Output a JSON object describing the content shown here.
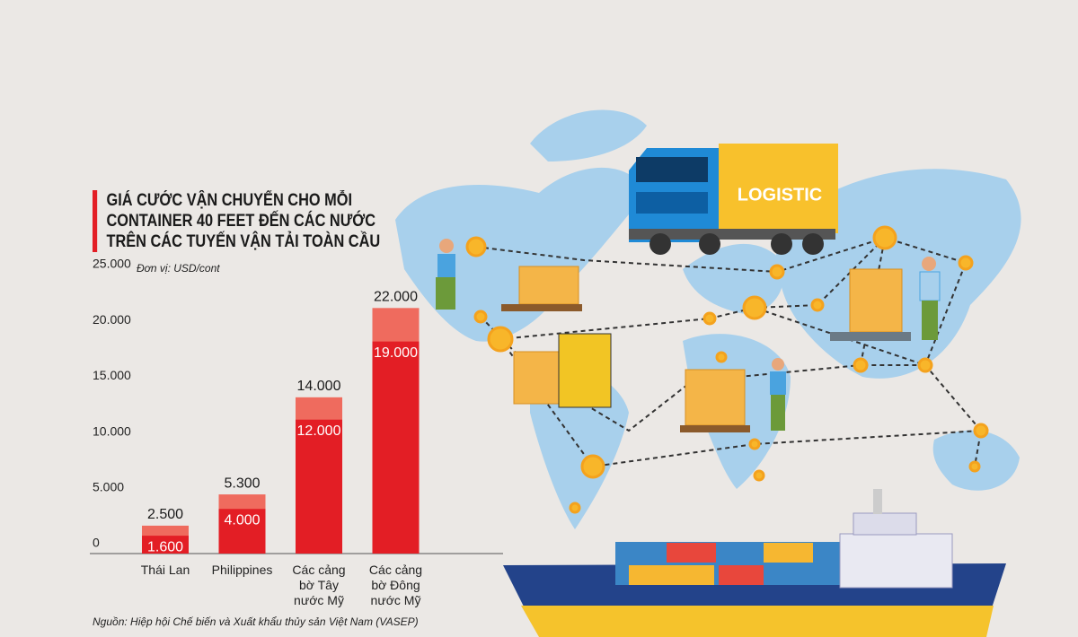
{
  "chart_data": {
    "type": "bar",
    "title": "GIÁ CƯỚC VẬN CHUYỂN CHO MỖI\nCONTAINER 40 FEET ĐẾN CÁC NƯỚC\nTRÊN CÁC TUYẾN VẬN TẢI TOÀN CẦU",
    "unit_note": "Đơn vị: USD/cont",
    "source": "Nguồn: Hiệp hội Chế biến và Xuất khẩu thủy sản Việt Nam (VASEP)",
    "truck_label": "LOGISTIC",
    "categories": [
      "Thái Lan",
      "Philippines",
      "Các cảng\nbờ Tây\nnước Mỹ",
      "Các cảng\nbờ Đông\nnước Mỹ"
    ],
    "series": [
      {
        "color": "#ef6b5e",
        "values": [
          2500,
          5300,
          14000,
          22000
        ],
        "value_labels": [
          "2.500",
          "5.300",
          "14.000",
          "22.000"
        ]
      },
      {
        "color": "#e31e25",
        "values": [
          1600,
          4000,
          12000,
          19000
        ],
        "value_labels": [
          "1.600",
          "4.000",
          "12.000",
          "19.000"
        ]
      }
    ],
    "ylim": [
      0,
      25000
    ],
    "yticks": [
      0,
      {
        "value": 5000,
        "label": "5.000"
      },
      {
        "value": 10000,
        "label": "10.000"
      },
      {
        "value": 15000,
        "label": "15.000"
      },
      {
        "value": 20000,
        "label": "20.000"
      },
      {
        "value": 25000,
        "label": "25.000"
      }
    ],
    "grid": false
  }
}
